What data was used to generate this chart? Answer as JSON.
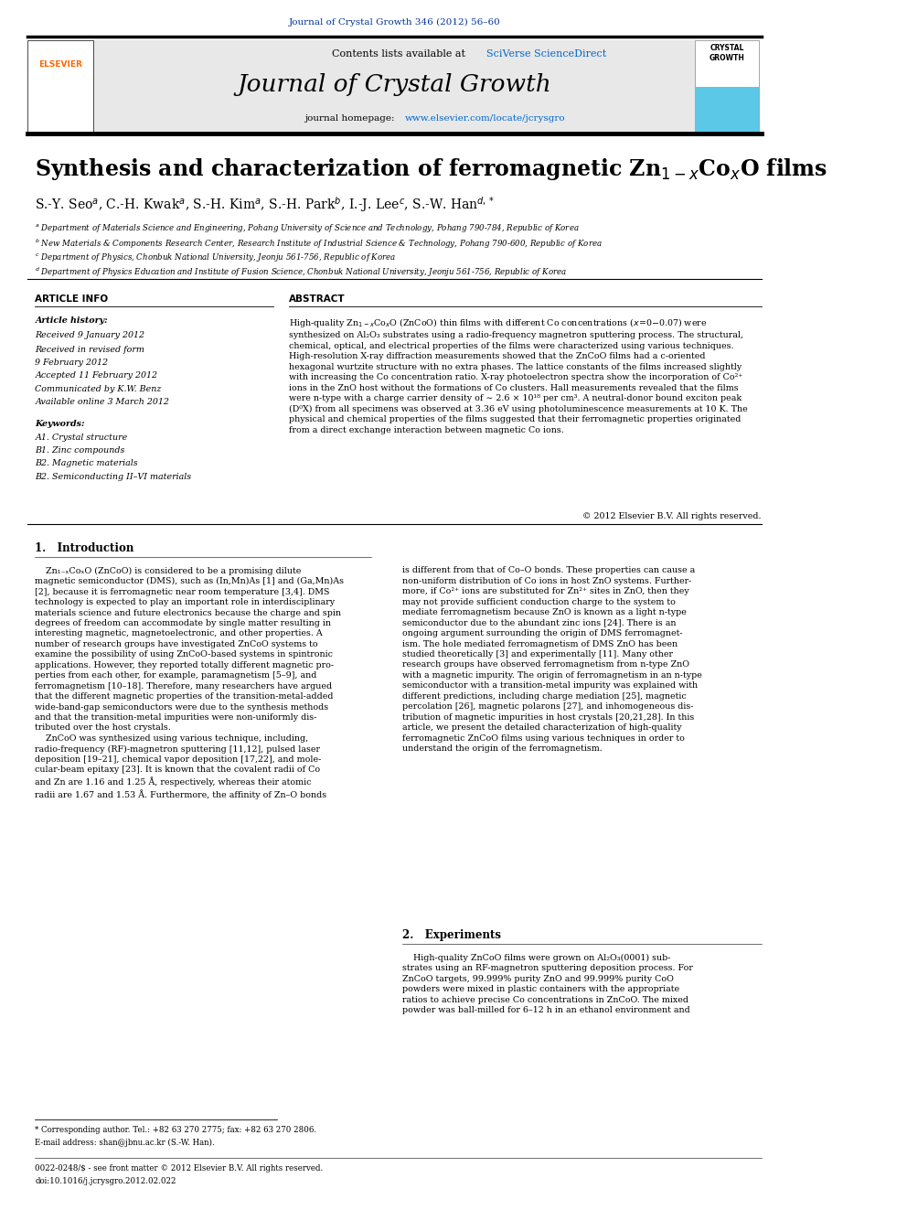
{
  "page_width": 9.92,
  "page_height": 13.23,
  "background_color": "#ffffff",
  "journal_ref": "Journal of Crystal Growth 346 (2012) 56–60",
  "journal_ref_color": "#003399",
  "header_bg": "#e8e8e8",
  "sciverse_color": "#0066cc",
  "homepage_url_color": "#0066cc",
  "elsevier_color": "#ff6600",
  "footer_issn": "0022-0248/$ - see front matter © 2012 Elsevier B.V. All rights reserved.",
  "footer_doi": "doi:10.1016/j.jcrysgro.2012.02.022"
}
